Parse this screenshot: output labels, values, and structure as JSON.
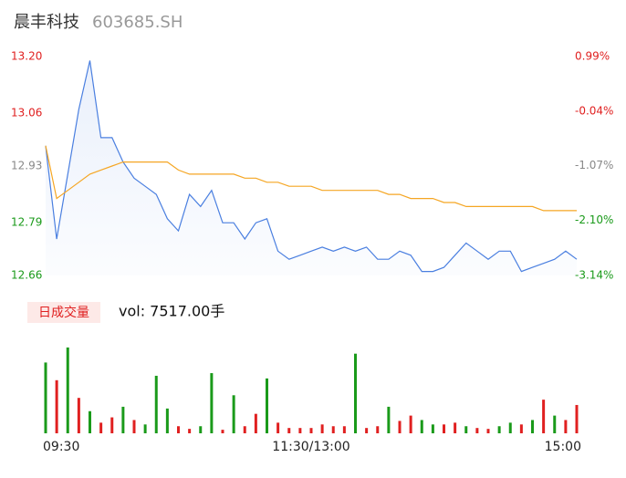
{
  "chart_data": {
    "type": "line",
    "title": "晨丰科技",
    "subtitle": "603685.SH",
    "x": [
      0,
      5,
      10,
      15,
      20,
      25,
      30,
      35,
      40,
      45,
      50,
      55,
      60,
      65,
      70,
      75,
      80,
      85,
      90,
      95,
      100,
      105,
      110,
      115,
      120,
      125,
      130,
      135,
      140,
      145,
      150,
      155,
      160,
      165,
      170,
      175,
      180,
      185,
      190,
      195,
      200,
      205,
      210,
      215,
      220,
      225,
      230,
      235,
      240
    ],
    "xlim": [
      0,
      240
    ],
    "xticks": [
      {
        "value": 0,
        "label": "09:30"
      },
      {
        "value": 120,
        "label": "11:30/13:00"
      },
      {
        "value": 240,
        "label": "15:00"
      }
    ],
    "ylim": [
      12.66,
      13.2
    ],
    "yticks": [
      {
        "value": 13.2,
        "label": "13.20"
      },
      13.06,
      12.93,
      12.79,
      12.66
    ],
    "ytick_colors": [
      "#e02020",
      "#e02020",
      "#888888",
      "#1a9a1a",
      "#1a9a1a"
    ],
    "y2lim": [
      -3.14,
      0.99
    ],
    "y2ticks": [
      {
        "value": 0.99,
        "label": "0.99%"
      },
      {
        "value": -0.04,
        "label": "-0.04%"
      },
      {
        "value": -1.07,
        "label": "-1.07%"
      },
      {
        "value": -2.1,
        "label": "-2.10%"
      },
      {
        "value": -3.14,
        "label": "-3.14%"
      }
    ],
    "y2tick_colors": [
      "#e02020",
      "#e02020",
      "#888888",
      "#1a9a1a",
      "#1a9a1a"
    ],
    "series": [
      {
        "color": "#4a7fe0",
        "values": [
          12.98,
          12.75,
          12.91,
          13.07,
          13.19,
          13.0,
          13.0,
          12.94,
          12.9,
          12.88,
          12.86,
          12.8,
          12.77,
          12.86,
          12.83,
          12.87,
          12.79,
          12.79,
          12.75,
          12.79,
          12.8,
          12.72,
          12.7,
          12.71,
          12.72,
          12.73,
          12.72,
          12.73,
          12.72,
          12.73,
          12.7,
          12.7,
          12.72,
          12.71,
          12.67,
          12.67,
          12.68,
          12.71,
          12.74,
          12.72,
          12.7,
          12.72,
          12.72,
          12.67,
          12.68,
          12.69,
          12.7,
          12.72,
          12.7
        ]
      },
      {
        "color": "#f5a623",
        "values": [
          12.98,
          12.85,
          12.87,
          12.89,
          12.91,
          12.92,
          12.93,
          12.94,
          12.94,
          12.94,
          12.94,
          12.94,
          12.92,
          12.91,
          12.91,
          12.91,
          12.91,
          12.91,
          12.9,
          12.9,
          12.89,
          12.89,
          12.88,
          12.88,
          12.88,
          12.87,
          12.87,
          12.87,
          12.87,
          12.87,
          12.87,
          12.86,
          12.86,
          12.85,
          12.85,
          12.85,
          12.84,
          12.84,
          12.83,
          12.83,
          12.83,
          12.83,
          12.83,
          12.83,
          12.83,
          12.82,
          12.82,
          12.82,
          12.82
        ]
      }
    ],
    "volume": {
      "label": "日成交量",
      "summary": "vol: 7517.00手",
      "ylim": [
        0,
        100
      ],
      "values": [
        80,
        60,
        97,
        40,
        25,
        12,
        18,
        30,
        15,
        10,
        65,
        28,
        8,
        5,
        8,
        68,
        4,
        43,
        8,
        22,
        62,
        12,
        6,
        6,
        6,
        10,
        8,
        8,
        90,
        6,
        8,
        30,
        14,
        20,
        15,
        10,
        10,
        12,
        8,
        6,
        5,
        8,
        12,
        10,
        15,
        38,
        20,
        15,
        32
      ],
      "colors": [
        "#1a9a1a",
        "#e02020",
        "#1a9a1a",
        "#e02020",
        "#1a9a1a",
        "#e02020",
        "#e02020",
        "#1a9a1a",
        "#e02020",
        "#1a9a1a",
        "#1a9a1a",
        "#1a9a1a",
        "#e02020",
        "#e02020",
        "#1a9a1a",
        "#1a9a1a",
        "#e02020",
        "#1a9a1a",
        "#e02020",
        "#e02020",
        "#1a9a1a",
        "#e02020",
        "#e02020",
        "#e02020",
        "#e02020",
        "#e02020",
        "#e02020",
        "#e02020",
        "#1a9a1a",
        "#e02020",
        "#e02020",
        "#1a9a1a",
        "#e02020",
        "#e02020",
        "#1a9a1a",
        "#1a9a1a",
        "#e02020",
        "#e02020",
        "#1a9a1a",
        "#e02020",
        "#e02020",
        "#1a9a1a",
        "#1a9a1a",
        "#e02020",
        "#1a9a1a",
        "#e02020",
        "#1a9a1a",
        "#e02020",
        "#e02020"
      ]
    }
  }
}
